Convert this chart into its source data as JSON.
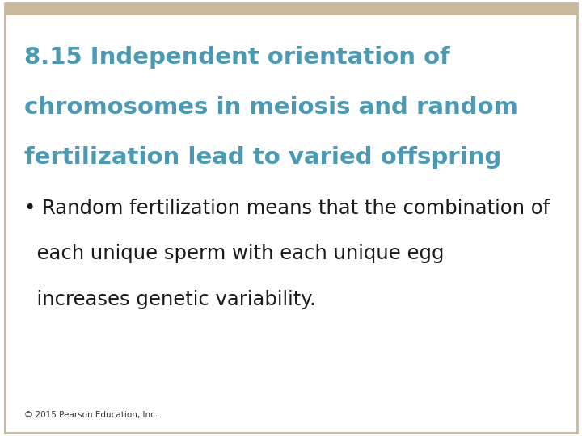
{
  "background_color": "#ffffff",
  "border_color": "#c8b99a",
  "border_top_color": "#c8b99a",
  "title_line1": "8.15 Independent orientation of",
  "title_line2": "chromosomes in meiosis and random",
  "title_line3": "fertilization lead to varied offspring",
  "title_color": "#4a9ab5",
  "bullet_text_line1": "• Random fertilization means that the combination of",
  "bullet_text_line2": "  each unique sperm with each unique egg",
  "bullet_text_line3": "  increases genetic variability.",
  "bullet_color": "#1a1a1a",
  "footer_text": "© 2015 Pearson Education, Inc.",
  "footer_color": "#333333",
  "title_fontsize": 21,
  "bullet_fontsize": 17.5,
  "footer_fontsize": 7.5
}
